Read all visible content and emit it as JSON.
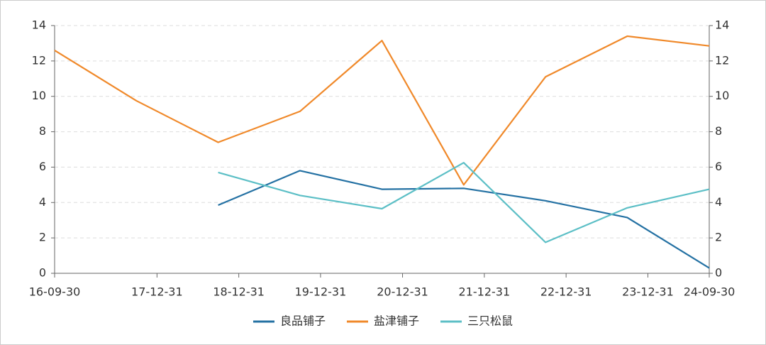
{
  "chart_data": {
    "type": "line",
    "x": [
      "16-09-30",
      "17-09-30",
      "18-09-30",
      "19-09-30",
      "20-09-30",
      "21-09-30",
      "22-09-30",
      "23-09-30",
      "24-09-30"
    ],
    "xlim": [
      "16-09-30",
      "24-09-30"
    ],
    "xticks": [
      "16-09-30",
      "17-12-31",
      "18-12-31",
      "19-12-31",
      "20-12-31",
      "21-12-31",
      "22-12-31",
      "23-12-31",
      "24-09-30"
    ],
    "ylim": [
      0,
      14
    ],
    "yticks": [
      0,
      2,
      4,
      6,
      8,
      10,
      12,
      14
    ],
    "y2lim": [
      0,
      14
    ],
    "y2ticks": [
      0,
      2,
      4,
      6,
      8,
      10,
      12,
      14
    ],
    "grid": true,
    "legend": "bottom",
    "series": [
      {
        "name": "良品铺子",
        "color": "#2471a3",
        "values": [
          null,
          null,
          3.85,
          5.8,
          4.75,
          4.8,
          4.1,
          3.15,
          0.3
        ]
      },
      {
        "name": "盐津铺子",
        "color": "#f0892a",
        "values": [
          12.6,
          9.75,
          7.4,
          9.15,
          13.15,
          5.0,
          11.1,
          13.4,
          12.85
        ]
      },
      {
        "name": "三只松鼠",
        "color": "#5cbfc6",
        "values": [
          null,
          null,
          5.7,
          4.4,
          3.65,
          6.25,
          1.75,
          3.7,
          4.75
        ]
      }
    ]
  }
}
